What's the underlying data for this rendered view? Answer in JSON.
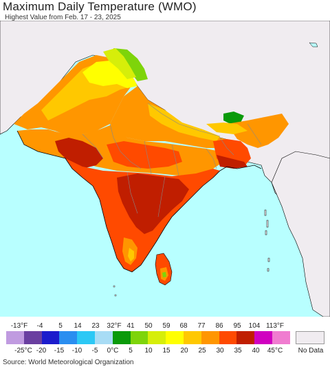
{
  "header": {
    "title": "Maximum Daily Temperature (WMO)",
    "subtitle": "Highest Value from Feb. 17 - 23, 2025"
  },
  "legend": {
    "fahrenheit_labels": [
      "-13°F",
      "-4",
      "5",
      "14",
      "23",
      "32°F",
      "41",
      "50",
      "59",
      "68",
      "77",
      "86",
      "95",
      "104",
      "113°F"
    ],
    "celsius_labels": [
      "-25°C",
      "-20",
      "-15",
      "-10",
      "-5",
      "0°C",
      "5",
      "10",
      "15",
      "20",
      "25",
      "30",
      "35",
      "40",
      "45°C"
    ],
    "colors": [
      "#c09be0",
      "#6a3fa0",
      "#1c1ccc",
      "#2a8ef0",
      "#2cc8f5",
      "#a8dcf5",
      "#0a9a0a",
      "#7ed40a",
      "#d6ee0a",
      "#ffff00",
      "#ffc800",
      "#ff9600",
      "#ff4a00",
      "#c01e00",
      "#d000c0",
      "#f07cd0"
    ],
    "no_data_label": "No Data",
    "no_data_color": "#f0ecf0"
  },
  "map": {
    "ocean_color": "#b8ffff",
    "land_nodata_color": "#f0ecf0"
  },
  "footer": {
    "source": "Source: World Meteorological Organization"
  }
}
